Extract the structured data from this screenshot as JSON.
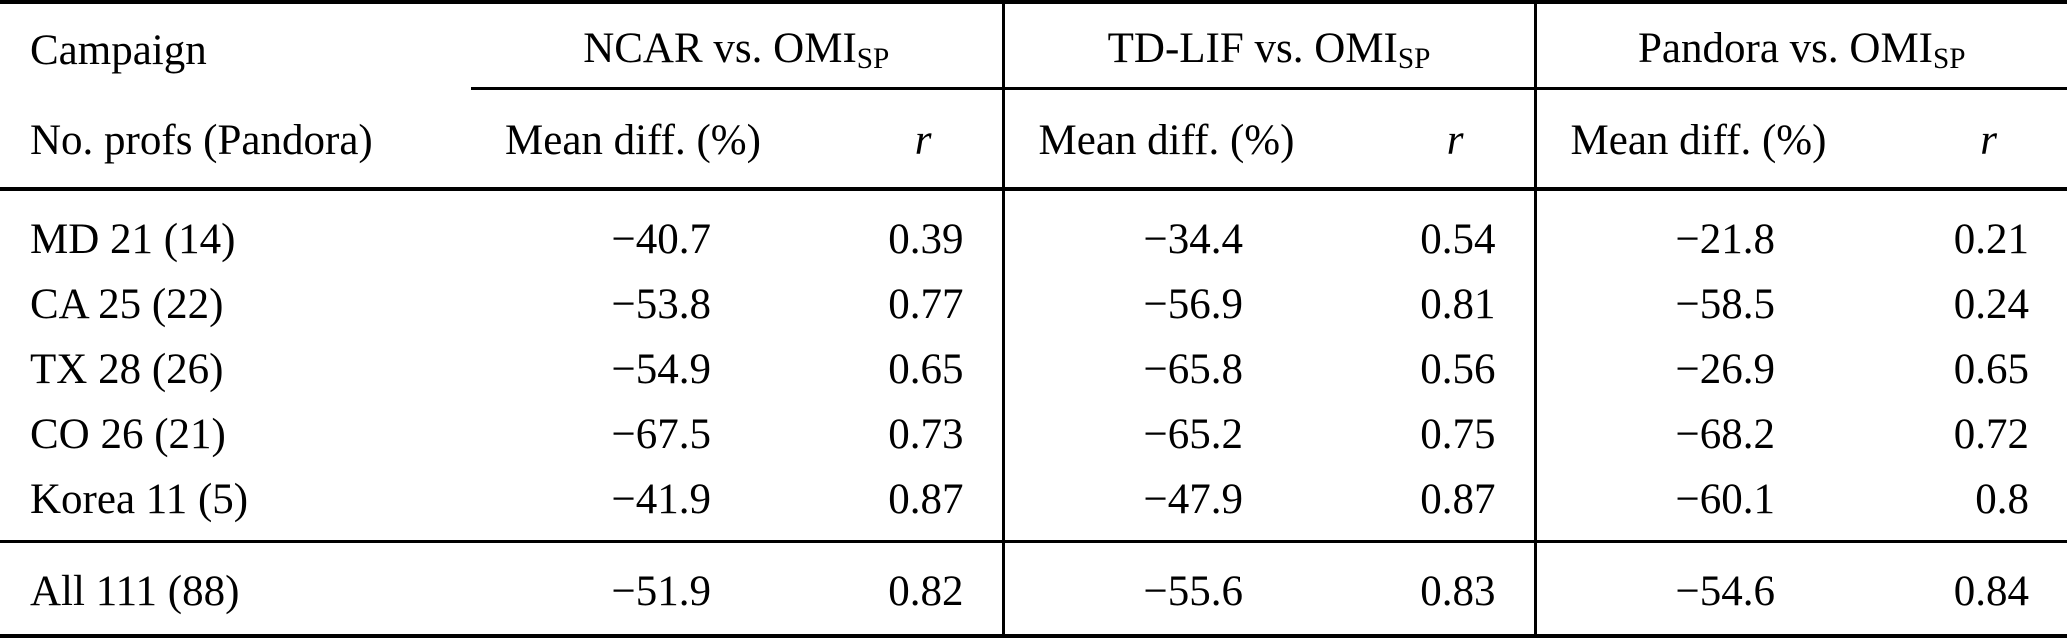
{
  "page": {
    "background_color": "#ffffff",
    "text_color": "#000000"
  },
  "table": {
    "groups": [
      {
        "name": "NCAR vs. OMI",
        "sub": "SP"
      },
      {
        "name": "TD-LIF vs. OMI",
        "sub": "SP"
      },
      {
        "name": "Pandora vs. OMI",
        "sub": "SP"
      }
    ],
    "headers": {
      "campaign_line1": "Campaign",
      "campaign_line2": "No. profs (Pandora)",
      "mean_diff": "Mean diff. (%)",
      "r": "r"
    },
    "rows": [
      {
        "campaign": "MD 21 (14)",
        "values": [
          "−40.7",
          "0.39",
          "−34.4",
          "0.54",
          "−21.8",
          "0.21"
        ]
      },
      {
        "campaign": "CA 25 (22)",
        "values": [
          "−53.8",
          "0.77",
          "−56.9",
          "0.81",
          "−58.5",
          "0.24"
        ]
      },
      {
        "campaign": "TX 28 (26)",
        "values": [
          "−54.9",
          "0.65",
          "−65.8",
          "0.56",
          "−26.9",
          "0.65"
        ]
      },
      {
        "campaign": "CO 26 (21)",
        "values": [
          "−67.5",
          "0.73",
          "−65.2",
          "0.75",
          "−68.2",
          "0.72"
        ]
      },
      {
        "campaign": "Korea 11 (5)",
        "values": [
          "−41.9",
          "0.87",
          "−47.9",
          "0.87",
          "−60.1",
          "0.8"
        ]
      }
    ],
    "total": {
      "campaign": "All 111 (88)",
      "values": [
        "−51.9",
        "0.82",
        "−55.6",
        "0.83",
        "−54.6",
        "0.84"
      ]
    }
  },
  "chart_data": {
    "type": "table",
    "column_groups": [
      "NCAR vs. OMI_SP",
      "TD-LIF vs. OMI_SP",
      "Pandora vs. OMI_SP"
    ],
    "columns": [
      "Campaign / No. profs (Pandora)",
      "Mean diff. (%)",
      "r",
      "Mean diff. (%)",
      "r",
      "Mean diff. (%)",
      "r"
    ],
    "rows": [
      [
        "MD 21 (14)",
        -40.7,
        0.39,
        -34.4,
        0.54,
        -21.8,
        0.21
      ],
      [
        "CA 25 (22)",
        -53.8,
        0.77,
        -56.9,
        0.81,
        -58.5,
        0.24
      ],
      [
        "TX 28 (26)",
        -54.9,
        0.65,
        -65.8,
        0.56,
        -26.9,
        0.65
      ],
      [
        "CO 26 (21)",
        -67.5,
        0.73,
        -65.2,
        0.75,
        -68.2,
        0.72
      ],
      [
        "Korea 11 (5)",
        -41.9,
        0.87,
        -47.9,
        0.87,
        -60.1,
        0.8
      ],
      [
        "All 111 (88)",
        -51.9,
        0.82,
        -55.6,
        0.83,
        -54.6,
        0.84
      ]
    ]
  }
}
